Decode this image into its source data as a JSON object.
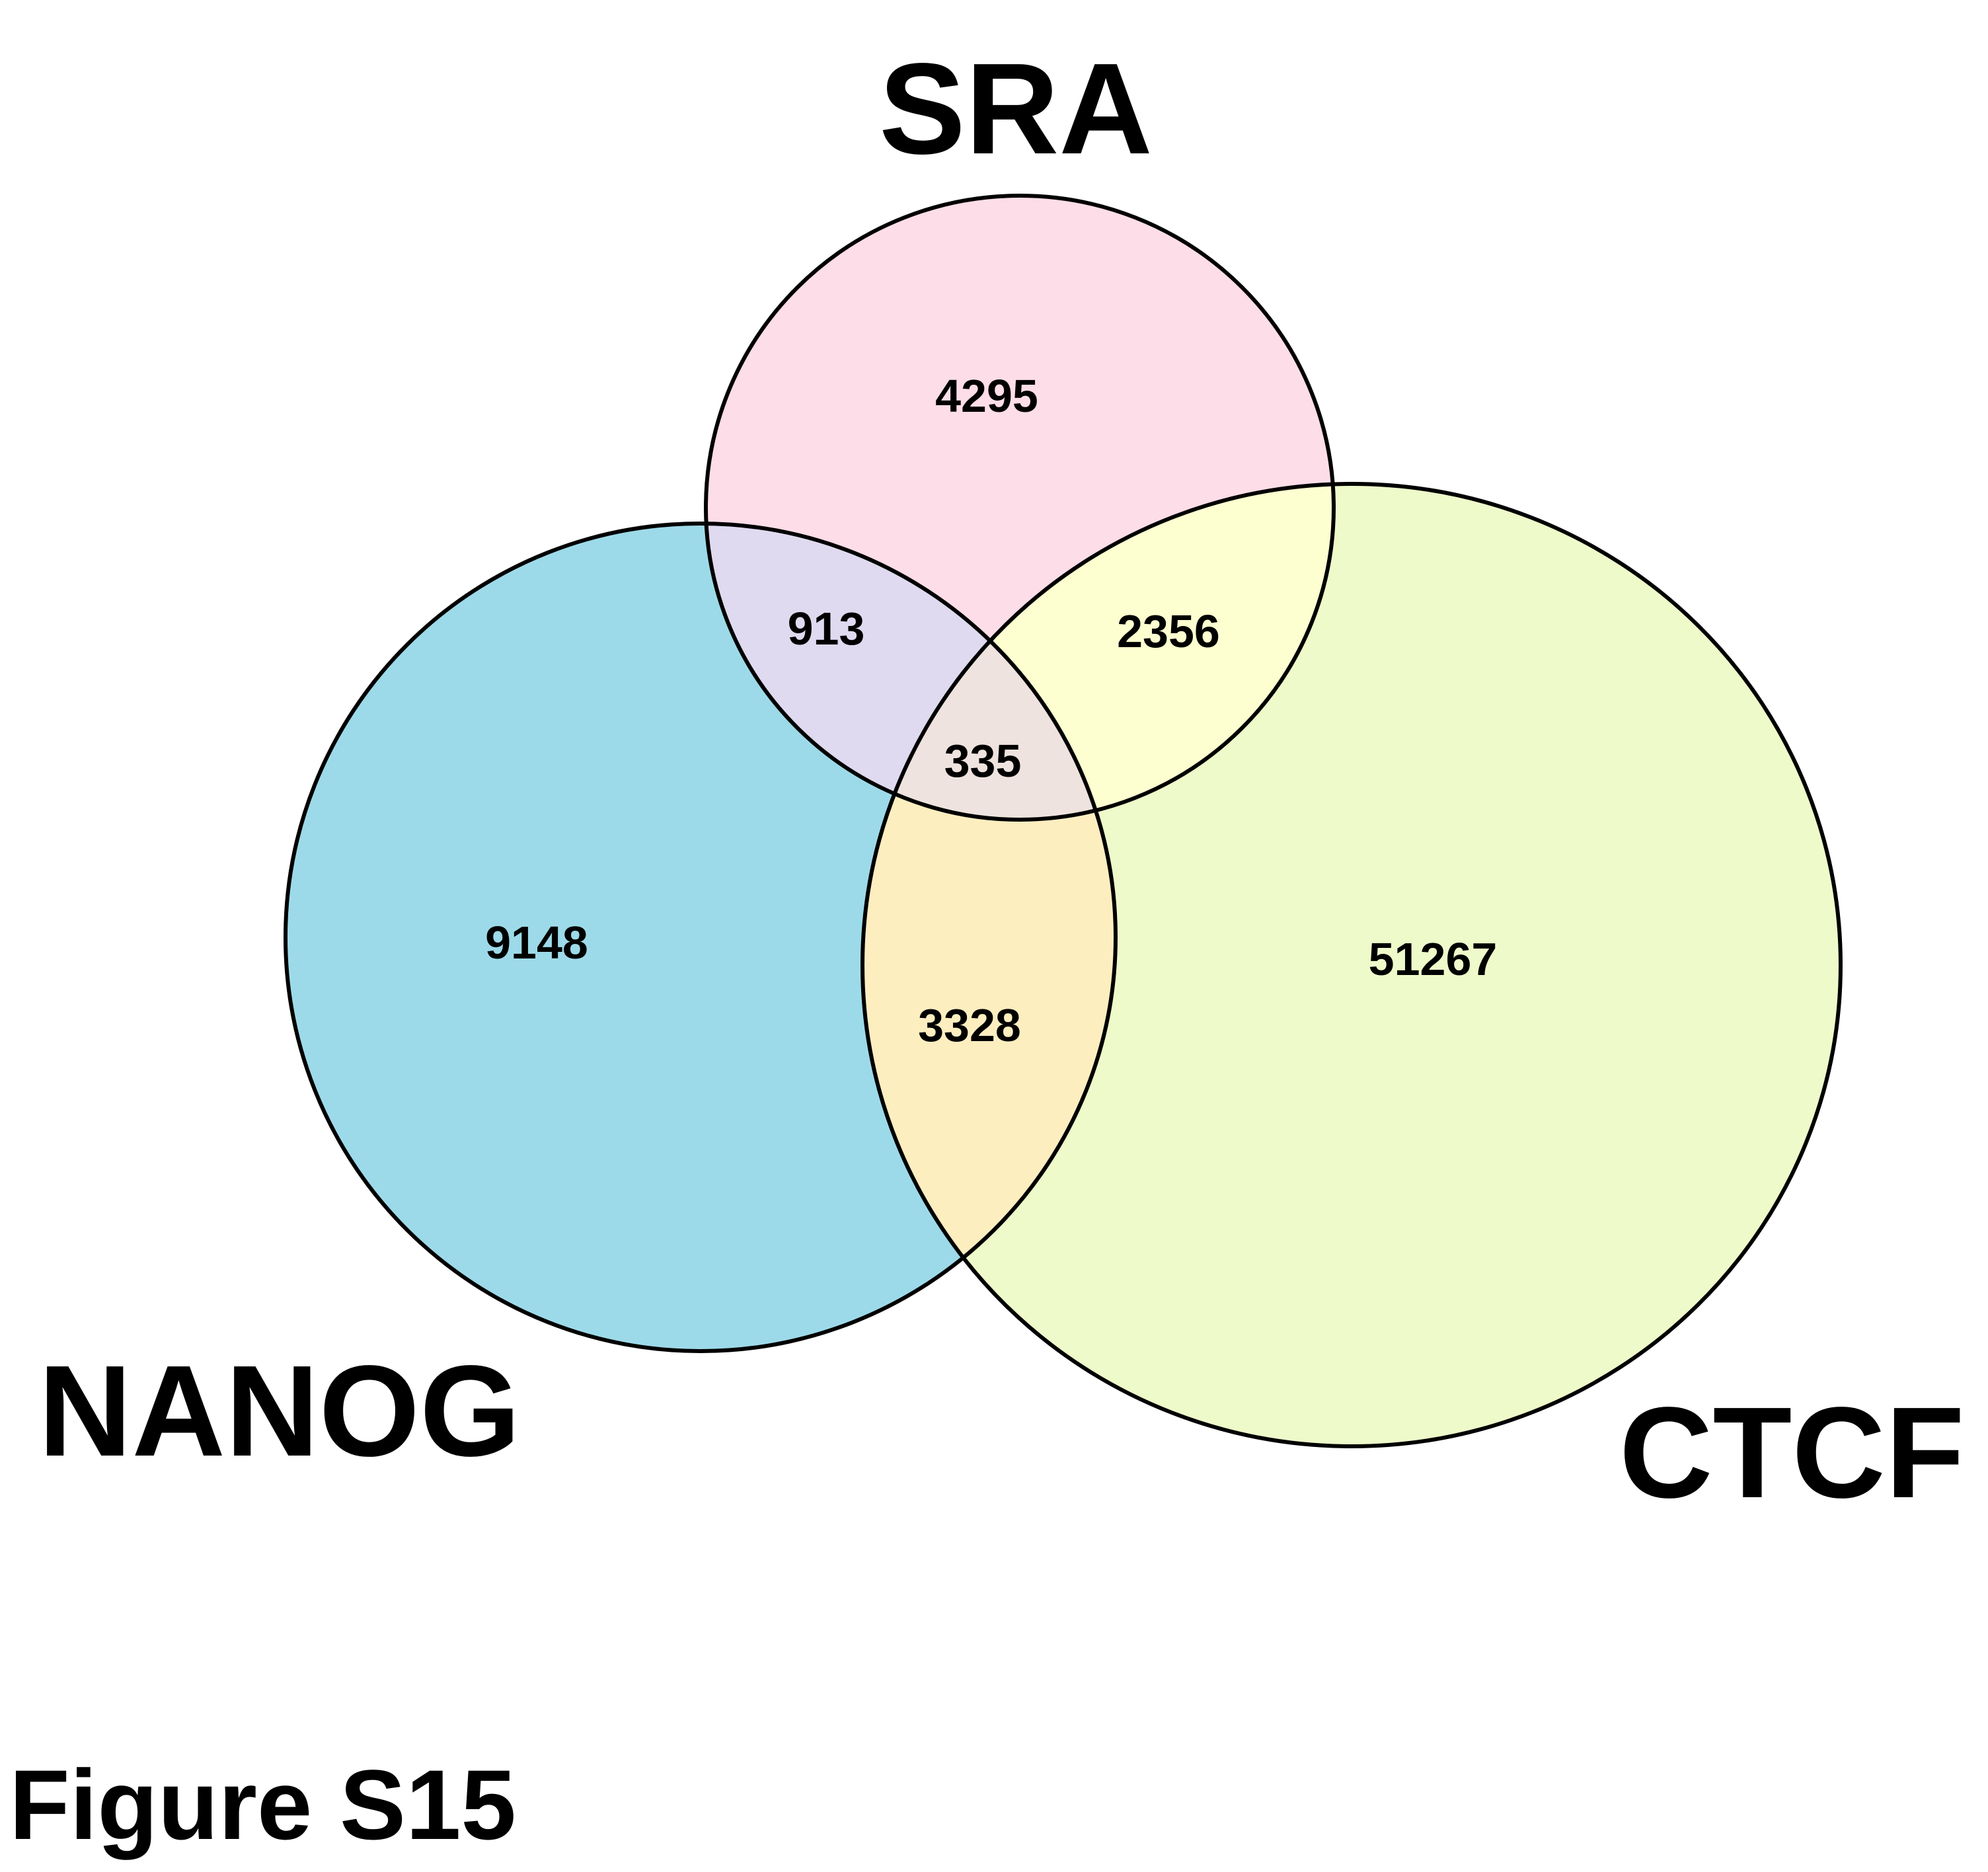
{
  "figure_label": "Figure S15",
  "sets": {
    "sra": {
      "label": "SRA",
      "color": "#FDDDE8"
    },
    "nanog": {
      "label": "NANOG",
      "color": "#9DDAE9"
    },
    "ctcf": {
      "label": "CTCF",
      "color": "#EEFACA"
    }
  },
  "regions": {
    "sra_only": {
      "value": "4295"
    },
    "nanog_sra": {
      "value": "913",
      "color": "#DFDAEF"
    },
    "sra_ctcf": {
      "value": "2356",
      "color": "#FEFFD0"
    },
    "all_three": {
      "value": "335",
      "color": "#EEE3DE"
    },
    "nanog_only": {
      "value": "9148"
    },
    "nanog_ctcf": {
      "value": "3328",
      "color": "#FDEEC0"
    },
    "ctcf_only": {
      "value": "51267"
    }
  }
}
